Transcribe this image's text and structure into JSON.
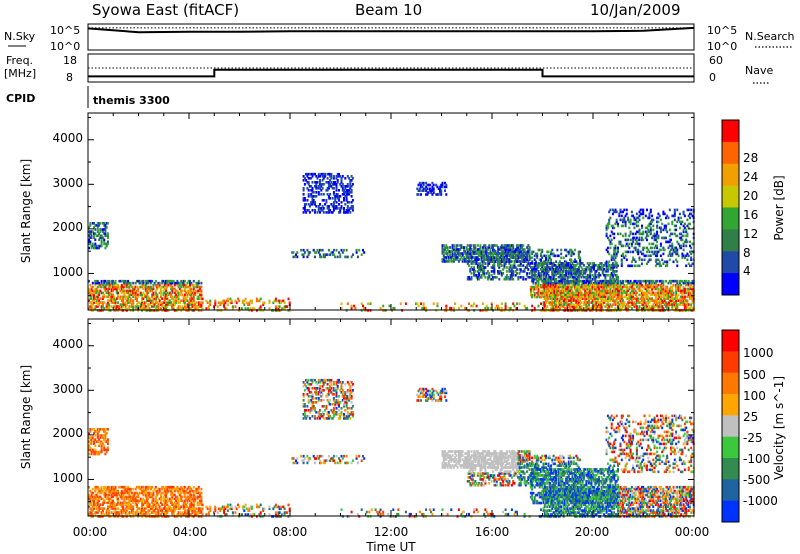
{
  "header": {
    "station": "Syowa East (fitACF)",
    "beam": "Beam 10",
    "date": "10/Jan/2009"
  },
  "top_panels": {
    "nsky_label": "N.Sky",
    "nsky_ticks": [
      "10^5",
      "10^0"
    ],
    "nsearch_label": "N.Search",
    "nsearch_ticks": [
      "10^5",
      "10^0"
    ],
    "freq_label_1": "Freq.",
    "freq_label_2": "[MHz]",
    "freq_ticks": [
      "18",
      "8"
    ],
    "nave_label": "Nave",
    "nave_ticks": [
      "60",
      "0"
    ],
    "cpid_label": "CPID",
    "cpid_value": "themis 3300"
  },
  "chart_data": [
    {
      "type": "line",
      "title": "N.Sky / N.Search",
      "x": [
        "00:00",
        "02:00",
        "04:00",
        "06:00",
        "08:00",
        "10:00",
        "12:00",
        "14:00",
        "16:00",
        "18:00",
        "20:00",
        "22:00",
        "24:00"
      ],
      "series": [
        {
          "name": "N.Sky",
          "values": [
            4.5,
            3.7,
            3.8,
            3.8,
            3.9,
            3.9,
            3.9,
            3.9,
            3.9,
            3.9,
            3.9,
            4.0,
            4.6
          ]
        },
        {
          "name": "N.Search",
          "values": [
            4.6,
            4.6,
            4.6,
            4.6,
            4.6,
            4.6,
            4.6,
            4.6,
            4.6,
            4.6,
            4.6,
            4.6,
            4.6
          ]
        }
      ],
      "ylim": [
        0,
        5
      ]
    },
    {
      "type": "line",
      "title": "Freq / Nave",
      "x_hours": [
        0,
        5,
        5,
        18,
        18,
        24
      ],
      "series": [
        {
          "name": "Freq. [MHz]",
          "values": [
            10,
            10,
            12.4,
            12.4,
            10,
            10
          ]
        },
        {
          "name": "Nave",
          "values": [
            31,
            31,
            31,
            31,
            31,
            31
          ]
        }
      ],
      "ylim": [
        8,
        18
      ]
    },
    {
      "type": "heatmap",
      "ylabel": "Slant Range [km]",
      "yticks": [
        "1000",
        "2000",
        "3000",
        "4000"
      ],
      "ylim": [
        180,
        4600
      ],
      "xlim_hours": [
        0,
        24
      ],
      "colorbar": {
        "label": "Power [dB]",
        "ticks": [
          "4",
          "8",
          "12",
          "16",
          "20",
          "24",
          "28"
        ],
        "colors": [
          "#0000ff",
          "#1f4aa8",
          "#2f7f46",
          "#33a533",
          "#c8c800",
          "#f0a000",
          "#ff6400",
          "#ff0000"
        ]
      }
    },
    {
      "type": "heatmap",
      "ylabel": "Slant Range [km]",
      "yticks": [
        "1000",
        "2000",
        "3000",
        "4000"
      ],
      "ylim": [
        180,
        4600
      ],
      "xlim_hours": [
        0,
        24
      ],
      "xlabel": "Time UT",
      "xticks": [
        "00:00",
        "04:00",
        "08:00",
        "12:00",
        "16:00",
        "20:00",
        "00:00"
      ],
      "colorbar": {
        "label": "Velocity [m s^-1]",
        "ticks": [
          "1000",
          "500",
          "100",
          "25",
          "-25",
          "-100",
          "-500",
          "-1000"
        ],
        "colors": [
          "#0032ff",
          "#1e64a0",
          "#328c50",
          "#3cc83c",
          "#c0c0c0",
          "#ffa500",
          "#ff7800",
          "#ff3c00",
          "#ff0000"
        ]
      }
    }
  ]
}
